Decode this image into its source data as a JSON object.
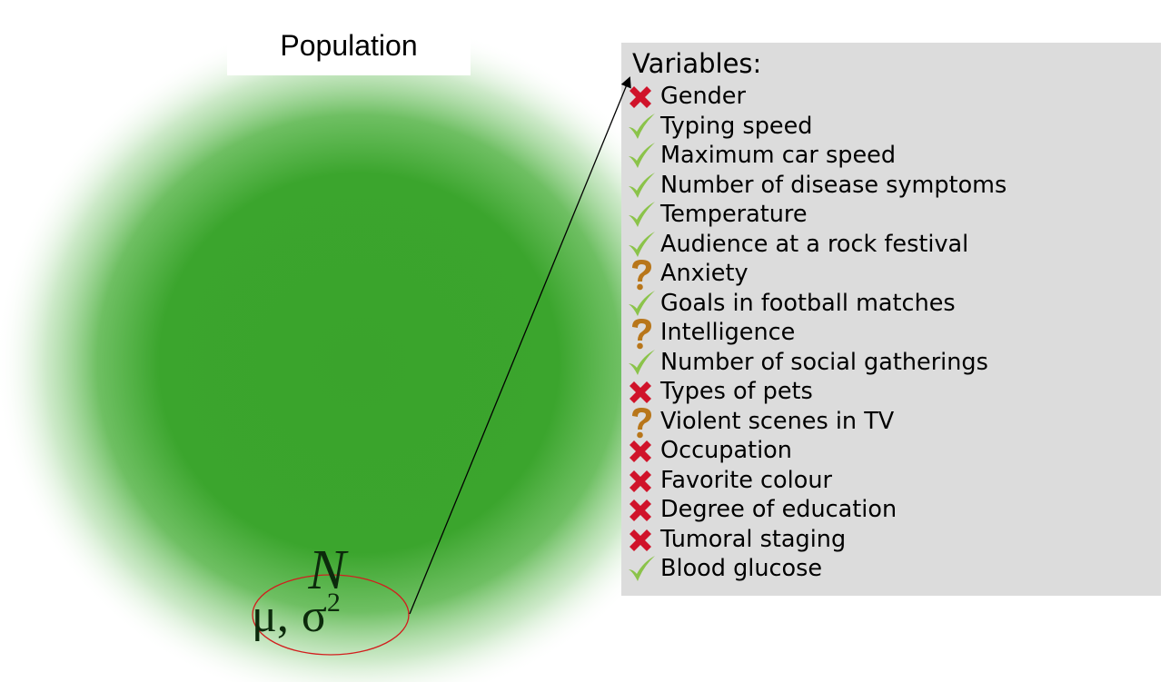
{
  "diagram": {
    "population_label": "Population",
    "distribution": {
      "symbol": "N",
      "mu": "μ",
      "separator": ",",
      "sigma": "σ",
      "exponent": "2"
    },
    "variables": {
      "header": "Variables:",
      "items": [
        {
          "label": "Gender",
          "status": "cross"
        },
        {
          "label": "Typing speed",
          "status": "check"
        },
        {
          "label": "Maximum car speed",
          "status": "check"
        },
        {
          "label": "Number of disease symptoms",
          "status": "check"
        },
        {
          "label": "Temperature",
          "status": "check"
        },
        {
          "label": "Audience at a rock festival",
          "status": "check"
        },
        {
          "label": "Anxiety",
          "status": "question"
        },
        {
          "label": "Goals in football matches",
          "status": "check"
        },
        {
          "label": "Intelligence",
          "status": "question"
        },
        {
          "label": "Number of social gatherings",
          "status": "check"
        },
        {
          "label": "Types of pets",
          "status": "cross"
        },
        {
          "label": "Violent scenes in TV",
          "status": "question"
        },
        {
          "label": "Occupation",
          "status": "cross"
        },
        {
          "label": "Favorite colour",
          "status": "cross"
        },
        {
          "label": "Degree of education",
          "status": "cross"
        },
        {
          "label": "Tumoral staging",
          "status": "cross"
        },
        {
          "label": "Blood glucose",
          "status": "check"
        }
      ]
    },
    "colors": {
      "population_green": "#3aa32c",
      "panel_gray": "#dcdcdc",
      "ellipse_red": "#d21e1e",
      "check_green": "#8bc34a",
      "cross_red": "#d0132a",
      "question_brown": "#b8761a"
    },
    "icons": {
      "check": "check-icon",
      "cross": "cross-icon",
      "question": "question-icon"
    }
  }
}
